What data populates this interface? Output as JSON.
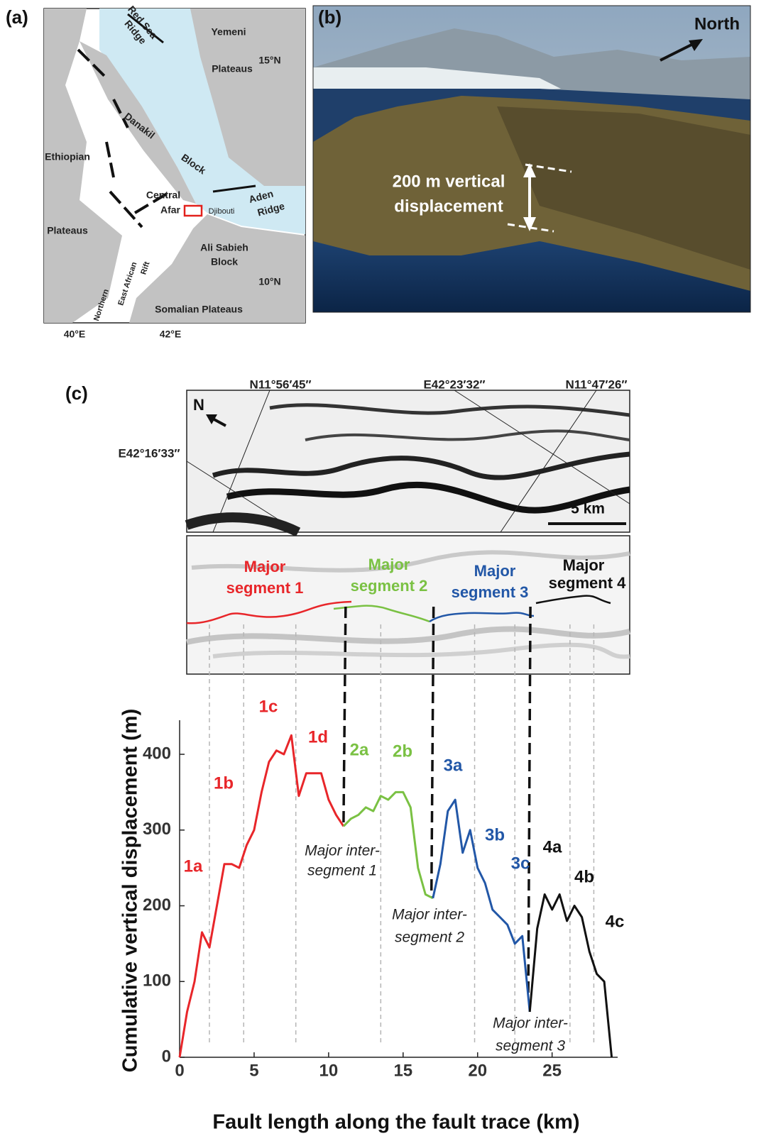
{
  "panels": {
    "a": "(a)",
    "b": "(b)",
    "c": "(c)"
  },
  "map": {
    "labels": [
      "Red Sea",
      "Ridge",
      "Yemeni",
      "Plateaus",
      "15°N",
      "Danakil",
      "Ethiopian",
      "Block",
      "Aden",
      "Ridge",
      "Central",
      "Afar",
      "Djibouti",
      "Plateaus",
      "Ali Sabieh",
      "Block",
      "Northern",
      "East African",
      "Rift",
      "10°N",
      "Somalian Plateaus",
      "40°E",
      "42°E"
    ]
  },
  "photo": {
    "north": "North",
    "displacement": [
      "200 m vertical",
      "displacement"
    ]
  },
  "dem": {
    "coords": [
      "N11°56′45″",
      "E42°23′32″",
      "N11°47′26″",
      "E42°16′33″"
    ],
    "north": "N",
    "scale": "5 km",
    "segments": [
      [
        "Major",
        "segment 1"
      ],
      [
        "Major",
        "segment 2"
      ],
      [
        "Major",
        "segment 3"
      ],
      [
        "Major",
        "segment 4"
      ]
    ]
  },
  "chart_data": {
    "type": "line",
    "xlabel": "Fault length along the fault trace (km)",
    "ylabel": "Cumulative vertical displacement (m)",
    "x": [
      0,
      0.5,
      1,
      1.5,
      2,
      2.5,
      3,
      3.5,
      4,
      4.5,
      5,
      5.5,
      6,
      6.5,
      7,
      7.5,
      8,
      8.5,
      9,
      9.5,
      10,
      10.5,
      11,
      11.5,
      12,
      12.5,
      13,
      13.5,
      14,
      14.5,
      15,
      15.5,
      16,
      16.5,
      17,
      17.5,
      18,
      18.5,
      19,
      19.5,
      20,
      20.5,
      21,
      21.5,
      22,
      22.5,
      23,
      23.5,
      24,
      24.5,
      25,
      25.5,
      26,
      26.5,
      27,
      27.5,
      28,
      28.5,
      29
    ],
    "series": [
      {
        "name": "Major segment 1",
        "color": "#e8262a",
        "sublabels": [
          "1a",
          "1b",
          "1c",
          "1d"
        ],
        "values": [
          0,
          60,
          100,
          165,
          145,
          200,
          255,
          255,
          250,
          280,
          300,
          350,
          390,
          405,
          400,
          425,
          345,
          375,
          375,
          375,
          340,
          320,
          305,
          null,
          null,
          null,
          null,
          null,
          null,
          null,
          null,
          null,
          null,
          null,
          null,
          null,
          null,
          null,
          null,
          null,
          null,
          null,
          null,
          null,
          null,
          null,
          null,
          null,
          null,
          null,
          null,
          null,
          null,
          null,
          null,
          null,
          null,
          null,
          null
        ]
      },
      {
        "name": "Major segment 2",
        "color": "#7ac143",
        "sublabels": [
          "2a",
          "2b"
        ],
        "values": [
          null,
          null,
          null,
          null,
          null,
          null,
          null,
          null,
          null,
          null,
          null,
          null,
          null,
          null,
          null,
          null,
          null,
          null,
          null,
          null,
          null,
          null,
          305,
          315,
          320,
          330,
          325,
          345,
          340,
          350,
          350,
          330,
          250,
          215,
          210,
          null,
          null,
          null,
          null,
          null,
          null,
          null,
          null,
          null,
          null,
          null,
          null,
          null,
          null,
          null,
          null,
          null,
          null,
          null,
          null,
          null,
          null,
          null,
          null
        ]
      },
      {
        "name": "Major segment 3",
        "color": "#2257a7",
        "sublabels": [
          "3a",
          "3b",
          "3c"
        ],
        "values": [
          null,
          null,
          null,
          null,
          null,
          null,
          null,
          null,
          null,
          null,
          null,
          null,
          null,
          null,
          null,
          null,
          null,
          null,
          null,
          null,
          null,
          null,
          null,
          null,
          null,
          null,
          null,
          null,
          null,
          null,
          null,
          null,
          null,
          null,
          210,
          255,
          325,
          340,
          270,
          300,
          250,
          230,
          195,
          185,
          175,
          150,
          160,
          60,
          null,
          null,
          null,
          null,
          null,
          null,
          null,
          null,
          null,
          null,
          null
        ]
      },
      {
        "name": "Major segment 4",
        "color": "#111111",
        "sublabels": [
          "4a",
          "4b",
          "4c"
        ],
        "values": [
          null,
          null,
          null,
          null,
          null,
          null,
          null,
          null,
          null,
          null,
          null,
          null,
          null,
          null,
          null,
          null,
          null,
          null,
          null,
          null,
          null,
          null,
          null,
          null,
          null,
          null,
          null,
          null,
          null,
          null,
          null,
          null,
          null,
          null,
          null,
          null,
          null,
          null,
          null,
          null,
          null,
          null,
          null,
          null,
          null,
          null,
          null,
          60,
          170,
          215,
          195,
          215,
          180,
          200,
          185,
          140,
          110,
          100,
          0
        ]
      }
    ],
    "major_boundaries": [
      11,
      16.9,
      23.4
    ],
    "minor_boundaries": [
      2,
      4.3,
      7.8,
      13.5,
      19.8,
      22.5,
      26.2,
      27.8
    ],
    "intersegment_labels": [
      [
        "Major inter-",
        "segment 1"
      ],
      [
        "Major inter-",
        "segment 2"
      ],
      [
        "Major inter-",
        "segment 3"
      ]
    ],
    "xlim": [
      0,
      29.4
    ],
    "ylim": [
      0,
      445
    ],
    "xticks": [
      0,
      5,
      10,
      15,
      20,
      25
    ],
    "yticks": [
      0,
      100,
      200,
      300,
      400
    ]
  }
}
